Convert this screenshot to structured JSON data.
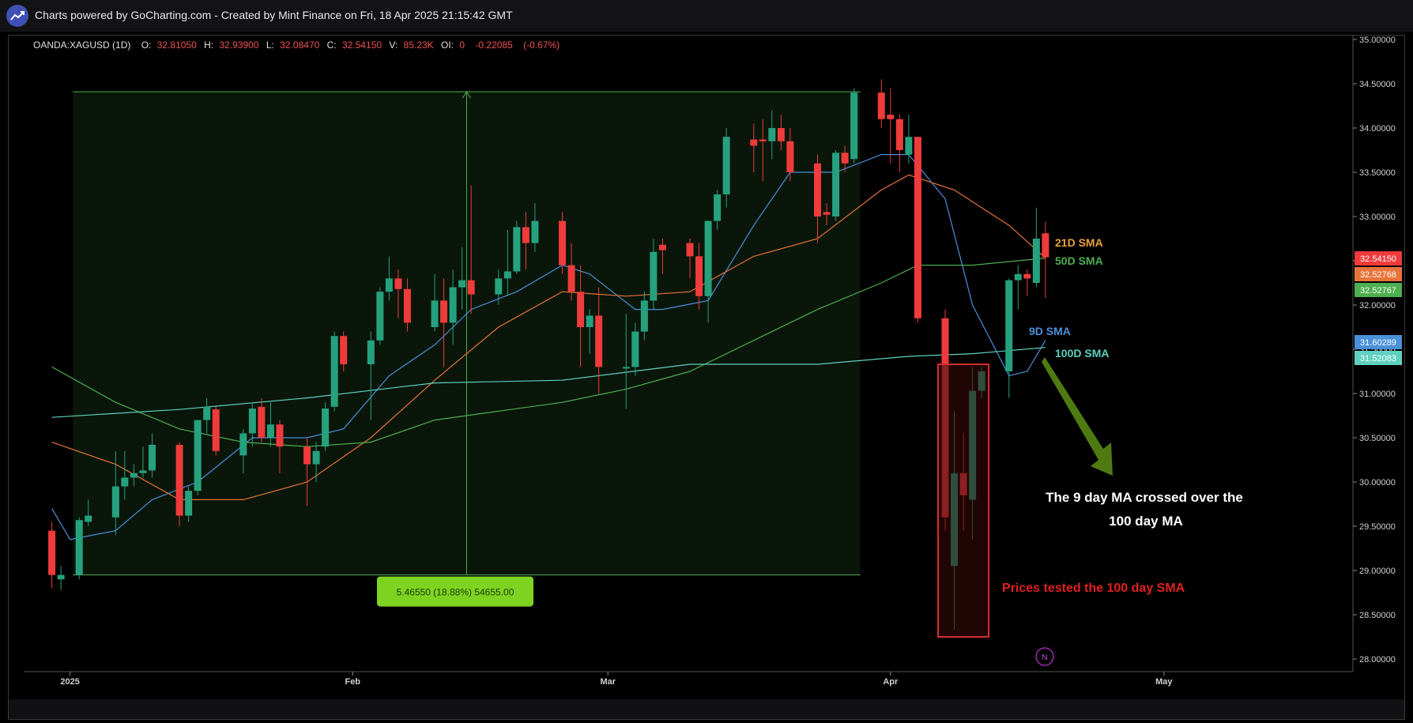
{
  "header": {
    "title": "Charts powered by GoCharting.com - Created by Mint Finance on Fri, 18 Apr 2025 21:15:42 GMT"
  },
  "colors": {
    "up": "#26a17e",
    "down": "#ef3b3b",
    "sma9": "#4a90d9",
    "sma21": "#e8743b",
    "sma50": "#4caf50",
    "sma100": "#5fd1c0",
    "measure": "#7ed321",
    "box": "#d32f2f",
    "arrow": "#4f7a12",
    "background": "#000000"
  },
  "legend": {
    "symbol": "OANDA:XAGUSD (1D)",
    "o_label": "O:",
    "o": "32.81050",
    "h_label": "H:",
    "h": "32.93900",
    "l_label": "L:",
    "l": "32.08470",
    "c_label": "C:",
    "c": "32.54150",
    "v_label": "V:",
    "v": "85.23K",
    "oi_label": "OI:",
    "oi": "0",
    "chg": "-0.22085",
    "chg_pct": "(-0.67%)"
  },
  "chart_data": {
    "type": "candlestick",
    "ylim": [
      28.0,
      35.0
    ],
    "y_ticks": [
      "35.00000",
      "34.50000",
      "34.00000",
      "33.50000",
      "33.00000",
      "32.50000",
      "32.00000",
      "31.50000",
      "31.00000",
      "30.50000",
      "30.00000",
      "29.50000",
      "29.00000",
      "28.50000",
      "28.00000"
    ],
    "x_ticks": [
      {
        "label": "2025",
        "date": "2025-01-01"
      },
      {
        "label": "Feb",
        "date": "2025-02-01"
      },
      {
        "label": "Mar",
        "date": "2025-03-01"
      },
      {
        "label": "Apr",
        "date": "2025-04-01"
      },
      {
        "label": "May",
        "date": "2025-05-01"
      }
    ],
    "x_range": [
      "2024-12-27",
      "2025-05-20"
    ],
    "candles": [
      {
        "date": "2024-12-30",
        "o": 29.45,
        "h": 29.55,
        "l": 28.8,
        "c": 28.95
      },
      {
        "date": "2024-12-31",
        "o": 28.9,
        "h": 29.05,
        "l": 28.78,
        "c": 28.95
      },
      {
        "date": "2025-01-02",
        "o": 28.95,
        "h": 29.6,
        "l": 28.9,
        "c": 29.57
      },
      {
        "date": "2025-01-03",
        "o": 29.55,
        "h": 29.8,
        "l": 29.5,
        "c": 29.62
      },
      {
        "date": "2025-01-06",
        "o": 29.6,
        "h": 30.35,
        "l": 29.4,
        "c": 29.95
      },
      {
        "date": "2025-01-07",
        "o": 29.95,
        "h": 30.35,
        "l": 29.8,
        "c": 30.05
      },
      {
        "date": "2025-01-08",
        "o": 30.05,
        "h": 30.2,
        "l": 29.95,
        "c": 30.1
      },
      {
        "date": "2025-01-09",
        "o": 30.1,
        "h": 30.4,
        "l": 30.05,
        "c": 30.13
      },
      {
        "date": "2025-01-10",
        "o": 30.13,
        "h": 30.55,
        "l": 30.05,
        "c": 30.42
      },
      {
        "date": "2025-01-13",
        "o": 30.42,
        "h": 30.45,
        "l": 29.5,
        "c": 29.62
      },
      {
        "date": "2025-01-14",
        "o": 29.62,
        "h": 29.95,
        "l": 29.55,
        "c": 29.9
      },
      {
        "date": "2025-01-15",
        "o": 29.9,
        "h": 30.7,
        "l": 29.85,
        "c": 30.7
      },
      {
        "date": "2025-01-16",
        "o": 30.7,
        "h": 30.95,
        "l": 30.55,
        "c": 30.85
      },
      {
        "date": "2025-01-17",
        "o": 30.82,
        "h": 30.85,
        "l": 30.3,
        "c": 30.35
      },
      {
        "date": "2025-01-20",
        "o": 30.3,
        "h": 30.6,
        "l": 30.1,
        "c": 30.55
      },
      {
        "date": "2025-01-21",
        "o": 30.55,
        "h": 30.9,
        "l": 30.4,
        "c": 30.83
      },
      {
        "date": "2025-01-22",
        "o": 30.85,
        "h": 30.95,
        "l": 30.45,
        "c": 30.5
      },
      {
        "date": "2025-01-23",
        "o": 30.5,
        "h": 30.9,
        "l": 30.4,
        "c": 30.65
      },
      {
        "date": "2025-01-24",
        "o": 30.65,
        "h": 30.7,
        "l": 30.1,
        "c": 30.4
      },
      {
        "date": "2025-01-27",
        "o": 30.4,
        "h": 30.5,
        "l": 29.73,
        "c": 30.2
      },
      {
        "date": "2025-01-28",
        "o": 30.2,
        "h": 30.45,
        "l": 30.0,
        "c": 30.35
      },
      {
        "date": "2025-01-29",
        "o": 30.4,
        "h": 30.9,
        "l": 30.35,
        "c": 30.83
      },
      {
        "date": "2025-01-30",
        "o": 30.85,
        "h": 31.7,
        "l": 30.8,
        "c": 31.65
      },
      {
        "date": "2025-01-31",
        "o": 31.65,
        "h": 31.7,
        "l": 31.25,
        "c": 31.33
      },
      {
        "date": "2025-02-03",
        "o": 31.33,
        "h": 31.7,
        "l": 30.7,
        "c": 31.6
      },
      {
        "date": "2025-02-04",
        "o": 31.6,
        "h": 32.2,
        "l": 31.55,
        "c": 32.15
      },
      {
        "date": "2025-02-05",
        "o": 32.15,
        "h": 32.55,
        "l": 32.05,
        "c": 32.3
      },
      {
        "date": "2025-02-06",
        "o": 32.3,
        "h": 32.4,
        "l": 31.85,
        "c": 32.18
      },
      {
        "date": "2025-02-07",
        "o": 32.18,
        "h": 32.3,
        "l": 31.7,
        "c": 31.8
      },
      {
        "date": "2025-02-10",
        "o": 31.75,
        "h": 32.35,
        "l": 31.7,
        "c": 32.05
      },
      {
        "date": "2025-02-11",
        "o": 32.05,
        "h": 32.3,
        "l": 31.3,
        "c": 31.8
      },
      {
        "date": "2025-02-12",
        "o": 31.8,
        "h": 32.4,
        "l": 31.55,
        "c": 32.2
      },
      {
        "date": "2025-02-13",
        "o": 32.2,
        "h": 32.65,
        "l": 31.95,
        "c": 32.28
      },
      {
        "date": "2025-02-14",
        "o": 32.28,
        "h": 33.35,
        "l": 31.9,
        "c": 32.12
      },
      {
        "date": "2025-02-17",
        "o": 32.12,
        "h": 32.4,
        "l": 32.0,
        "c": 32.3
      },
      {
        "date": "2025-02-18",
        "o": 32.3,
        "h": 32.85,
        "l": 32.1,
        "c": 32.38
      },
      {
        "date": "2025-02-19",
        "o": 32.38,
        "h": 32.95,
        "l": 32.35,
        "c": 32.88
      },
      {
        "date": "2025-02-20",
        "o": 32.88,
        "h": 33.05,
        "l": 32.4,
        "c": 32.7
      },
      {
        "date": "2025-02-21",
        "o": 32.7,
        "h": 33.15,
        "l": 32.6,
        "c": 32.95
      },
      {
        "date": "2025-02-24",
        "o": 32.95,
        "h": 33.05,
        "l": 32.35,
        "c": 32.45
      },
      {
        "date": "2025-02-25",
        "o": 32.45,
        "h": 32.7,
        "l": 32.05,
        "c": 32.15
      },
      {
        "date": "2025-02-26",
        "o": 32.15,
        "h": 32.45,
        "l": 31.3,
        "c": 31.75
      },
      {
        "date": "2025-02-27",
        "o": 31.75,
        "h": 31.95,
        "l": 31.45,
        "c": 31.88
      },
      {
        "date": "2025-02-28",
        "o": 31.88,
        "h": 32.2,
        "l": 31.0,
        "c": 31.3
      },
      {
        "date": "2025-03-03",
        "o": 31.3,
        "h": 31.9,
        "l": 30.83,
        "c": 31.3
      },
      {
        "date": "2025-03-04",
        "o": 31.3,
        "h": 31.8,
        "l": 31.2,
        "c": 31.7
      },
      {
        "date": "2025-03-05",
        "o": 31.7,
        "h": 32.15,
        "l": 31.6,
        "c": 32.05
      },
      {
        "date": "2025-03-06",
        "o": 32.05,
        "h": 32.75,
        "l": 31.95,
        "c": 32.6
      },
      {
        "date": "2025-03-07",
        "o": 32.68,
        "h": 32.75,
        "l": 32.35,
        "c": 32.62
      },
      {
        "date": "2025-03-10",
        "o": 32.7,
        "h": 32.75,
        "l": 32.3,
        "c": 32.55
      },
      {
        "date": "2025-03-11",
        "o": 32.55,
        "h": 32.7,
        "l": 31.95,
        "c": 32.1
      },
      {
        "date": "2025-03-12",
        "o": 32.1,
        "h": 32.95,
        "l": 31.8,
        "c": 32.95
      },
      {
        "date": "2025-03-13",
        "o": 32.95,
        "h": 33.3,
        "l": 32.85,
        "c": 33.25
      },
      {
        "date": "2025-03-14",
        "o": 33.25,
        "h": 34.0,
        "l": 33.1,
        "c": 33.9
      },
      {
        "date": "2025-03-17",
        "o": 33.87,
        "h": 34.05,
        "l": 33.5,
        "c": 33.8
      },
      {
        "date": "2025-03-18",
        "o": 33.87,
        "h": 34.1,
        "l": 33.4,
        "c": 33.85
      },
      {
        "date": "2025-03-19",
        "o": 33.85,
        "h": 34.2,
        "l": 33.65,
        "c": 34.0
      },
      {
        "date": "2025-03-20",
        "o": 34.0,
        "h": 34.15,
        "l": 33.75,
        "c": 33.85
      },
      {
        "date": "2025-03-21",
        "o": 33.85,
        "h": 34.0,
        "l": 33.4,
        "c": 33.5
      },
      {
        "date": "2025-03-24",
        "o": 33.6,
        "h": 33.7,
        "l": 32.7,
        "c": 33.0
      },
      {
        "date": "2025-03-25",
        "o": 33.05,
        "h": 33.15,
        "l": 32.9,
        "c": 33.02
      },
      {
        "date": "2025-03-26",
        "o": 33.0,
        "h": 33.75,
        "l": 32.95,
        "c": 33.72
      },
      {
        "date": "2025-03-27",
        "o": 33.72,
        "h": 33.8,
        "l": 33.5,
        "c": 33.6
      },
      {
        "date": "2025-03-28",
        "o": 33.65,
        "h": 34.45,
        "l": 33.6,
        "c": 34.4
      },
      {
        "date": "2025-03-31",
        "o": 34.4,
        "h": 34.55,
        "l": 34.0,
        "c": 34.1
      },
      {
        "date": "2025-04-01",
        "o": 34.15,
        "h": 34.45,
        "l": 33.6,
        "c": 34.1
      },
      {
        "date": "2025-04-02",
        "o": 34.1,
        "h": 34.15,
        "l": 33.5,
        "c": 33.75
      },
      {
        "date": "2025-04-03",
        "o": 33.7,
        "h": 34.15,
        "l": 33.6,
        "c": 33.9
      },
      {
        "date": "2025-04-04",
        "o": 33.9,
        "h": 33.9,
        "l": 31.8,
        "c": 31.85
      },
      {
        "date": "2025-04-07",
        "o": 31.85,
        "h": 31.95,
        "l": 29.45,
        "c": 29.6
      },
      {
        "date": "2025-04-08",
        "o": 29.05,
        "h": 30.8,
        "l": 28.33,
        "c": 30.1
      },
      {
        "date": "2025-04-09",
        "o": 30.1,
        "h": 30.55,
        "l": 29.45,
        "c": 29.85
      },
      {
        "date": "2025-04-10",
        "o": 29.8,
        "h": 31.3,
        "l": 29.35,
        "c": 31.03
      },
      {
        "date": "2025-04-11",
        "o": 31.03,
        "h": 31.3,
        "l": 30.95,
        "c": 31.25
      },
      {
        "date": "2025-04-14",
        "o": 31.25,
        "h": 32.3,
        "l": 30.95,
        "c": 32.28
      },
      {
        "date": "2025-04-15",
        "o": 32.28,
        "h": 32.45,
        "l": 31.95,
        "c": 32.35
      },
      {
        "date": "2025-04-16",
        "o": 32.35,
        "h": 32.4,
        "l": 32.1,
        "c": 32.3
      },
      {
        "date": "2025-04-17",
        "o": 32.25,
        "h": 33.1,
        "l": 32.2,
        "c": 32.75
      },
      {
        "date": "2025-04-18",
        "o": 32.81,
        "h": 32.94,
        "l": 32.08,
        "c": 32.54
      }
    ],
    "series": [
      {
        "name": "9D SMA",
        "points": [
          [
            "2024-12-30",
            29.7
          ],
          [
            "2025-01-01",
            29.35
          ],
          [
            "2025-01-06",
            29.45
          ],
          [
            "2025-01-10",
            29.8
          ],
          [
            "2025-01-15",
            30.0
          ],
          [
            "2025-01-21",
            30.5
          ],
          [
            "2025-01-27",
            30.5
          ],
          [
            "2025-01-31",
            30.6
          ],
          [
            "2025-02-05",
            31.2
          ],
          [
            "2025-02-10",
            31.55
          ],
          [
            "2025-02-14",
            31.95
          ],
          [
            "2025-02-19",
            32.15
          ],
          [
            "2025-02-24",
            32.45
          ],
          [
            "2025-02-27",
            32.35
          ],
          [
            "2025-03-04",
            31.95
          ],
          [
            "2025-03-07",
            31.95
          ],
          [
            "2025-03-12",
            32.05
          ],
          [
            "2025-03-17",
            32.9
          ],
          [
            "2025-03-21",
            33.5
          ],
          [
            "2025-03-26",
            33.5
          ],
          [
            "2025-03-31",
            33.7
          ],
          [
            "2025-04-03",
            33.7
          ],
          [
            "2025-04-07",
            33.2
          ],
          [
            "2025-04-10",
            32.0
          ],
          [
            "2025-04-14",
            31.2
          ],
          [
            "2025-04-16",
            31.25
          ],
          [
            "2025-04-18",
            31.6
          ]
        ]
      },
      {
        "name": "21D SMA",
        "points": [
          [
            "2024-12-30",
            30.45
          ],
          [
            "2025-01-06",
            30.2
          ],
          [
            "2025-01-13",
            29.8
          ],
          [
            "2025-01-20",
            29.8
          ],
          [
            "2025-01-27",
            30.0
          ],
          [
            "2025-02-03",
            30.5
          ],
          [
            "2025-02-10",
            31.15
          ],
          [
            "2025-02-17",
            31.75
          ],
          [
            "2025-02-24",
            32.15
          ],
          [
            "2025-03-03",
            32.1
          ],
          [
            "2025-03-10",
            32.15
          ],
          [
            "2025-03-17",
            32.55
          ],
          [
            "2025-03-24",
            32.75
          ],
          [
            "2025-03-31",
            33.3
          ],
          [
            "2025-04-03",
            33.47
          ],
          [
            "2025-04-08",
            33.3
          ],
          [
            "2025-04-14",
            32.9
          ],
          [
            "2025-04-18",
            32.53
          ]
        ]
      },
      {
        "name": "50D SMA",
        "points": [
          [
            "2024-12-30",
            31.3
          ],
          [
            "2025-01-06",
            30.9
          ],
          [
            "2025-01-13",
            30.6
          ],
          [
            "2025-01-20",
            30.45
          ],
          [
            "2025-01-27",
            30.4
          ],
          [
            "2025-02-03",
            30.45
          ],
          [
            "2025-02-10",
            30.7
          ],
          [
            "2025-02-17",
            30.8
          ],
          [
            "2025-02-24",
            30.9
          ],
          [
            "2025-03-03",
            31.05
          ],
          [
            "2025-03-10",
            31.25
          ],
          [
            "2025-03-17",
            31.6
          ],
          [
            "2025-03-24",
            31.95
          ],
          [
            "2025-03-31",
            32.25
          ],
          [
            "2025-04-04",
            32.45
          ],
          [
            "2025-04-10",
            32.45
          ],
          [
            "2025-04-18",
            32.53
          ]
        ]
      },
      {
        "name": "100D SMA",
        "points": [
          [
            "2024-12-30",
            30.73
          ],
          [
            "2025-01-13",
            30.82
          ],
          [
            "2025-01-27",
            30.95
          ],
          [
            "2025-02-10",
            31.12
          ],
          [
            "2025-02-24",
            31.15
          ],
          [
            "2025-03-10",
            31.33
          ],
          [
            "2025-03-24",
            31.33
          ],
          [
            "2025-04-03",
            31.42
          ],
          [
            "2025-04-10",
            31.45
          ],
          [
            "2025-04-18",
            31.52
          ]
        ]
      }
    ],
    "measure_range": {
      "from_date": "2025-01-02",
      "to_date": "2025-03-28",
      "low": 28.95,
      "high": 34.41,
      "label": "5.46550 (18.88%) 54655.00"
    },
    "price_tags": [
      {
        "value": "32.54150",
        "color": "#ef3b3b"
      },
      {
        "value": "32.52768",
        "color": "#e8743b"
      },
      {
        "value": "32.52767",
        "color": "#4caf50"
      },
      {
        "value": "31.60289",
        "color": "#4a90d9"
      },
      {
        "value": "31.52083",
        "color": "#5fd1c0"
      }
    ],
    "sma_labels": [
      {
        "text": "21D SMA",
        "color": "#e8a23b"
      },
      {
        "text": "50D SMA",
        "color": "#4caf50"
      },
      {
        "text": "9D SMA",
        "color": "#4a90d9"
      },
      {
        "text": "100D SMA",
        "color": "#5fd1c0"
      }
    ],
    "annotations": {
      "cross_text_line1": "The 9 day MA crossed over the",
      "cross_text_line2": "100 day MA",
      "test_text": "Prices tested the 100 day SMA",
      "test_box": {
        "from_date": "2025-04-07",
        "to_date": "2025-04-11",
        "low": 28.25,
        "high": 31.33
      },
      "news_marker": "N"
    }
  }
}
